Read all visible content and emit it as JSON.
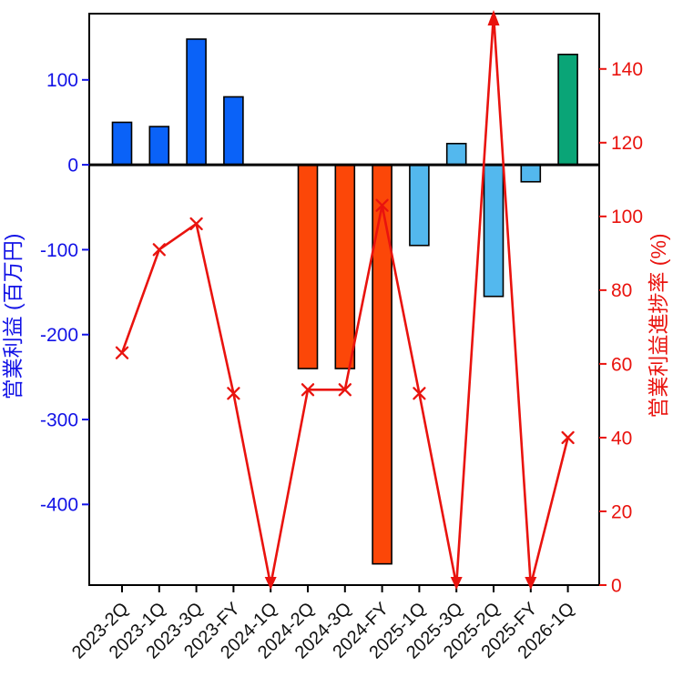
{
  "colors": {
    "bar_blue": "#0a62f8",
    "bar_orange": "#fc4708",
    "bar_skyblue": "#53b8ee",
    "bar_green": "#0aa577",
    "line_red": "#e9130e",
    "left_axis_text": "#1212e6",
    "right_axis_text": "#e9130e",
    "axis_black": "#000000"
  },
  "chart_data": {
    "type": "bar+line",
    "title": "",
    "categories": [
      "2023-2Q",
      "2023-1Q",
      "2023-3Q",
      "2023-FY",
      "2024-1Q",
      "2024-2Q",
      "2024-3Q",
      "2024-FY",
      "2025-1Q",
      "2025-3Q",
      "2025-2Q",
      "2025-FY",
      "2026-1Q"
    ],
    "series": [
      {
        "name": "営業利益",
        "type": "bar",
        "axis": "left",
        "values": [
          50,
          45,
          148,
          80,
          0,
          -240,
          -240,
          -470,
          -95,
          25,
          -155,
          -20,
          130
        ],
        "color_keys": [
          "bar_blue",
          "bar_blue",
          "bar_blue",
          "bar_blue",
          "bar_orange",
          "bar_orange",
          "bar_orange",
          "bar_orange",
          "bar_skyblue",
          "bar_skyblue",
          "bar_skyblue",
          "bar_skyblue",
          "bar_green"
        ]
      },
      {
        "name": "営業利益進捗率",
        "type": "line",
        "axis": "right",
        "marker": "x",
        "values": [
          63,
          91,
          98,
          52,
          0,
          53,
          53,
          103,
          52,
          0,
          160,
          0,
          40
        ],
        "clipped_up_indices": [
          10
        ],
        "zero_arrow_indices": [
          4,
          9,
          11
        ]
      }
    ],
    "ylabel_left": "営業利益 (百万円)",
    "ylabel_right": "営業利益進捗率 (%)",
    "yticks_left": [
      100,
      0,
      -100,
      -200,
      -300,
      -400
    ],
    "yticks_right": [
      140,
      120,
      100,
      80,
      60,
      40,
      20,
      0
    ],
    "ylim_left": [
      -495,
      178
    ],
    "ylim_right": [
      0,
      155
    ],
    "grid": false,
    "legend": "none"
  }
}
